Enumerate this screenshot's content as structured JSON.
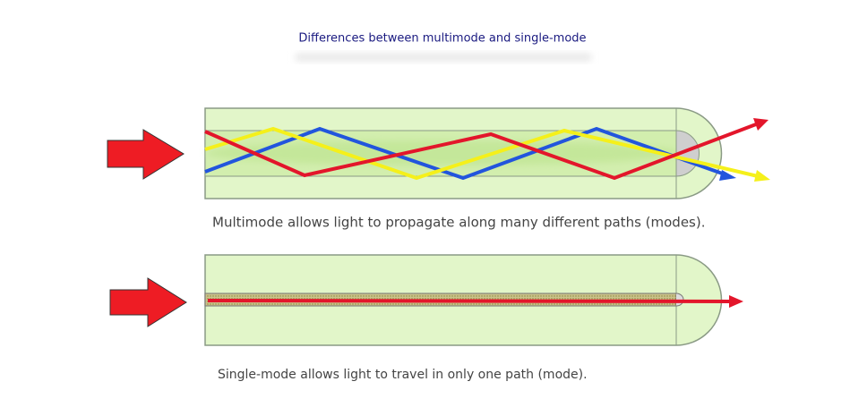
{
  "title": "Differences between multimode and single-mode",
  "diagrams": [
    {
      "caption": "Multimode allows light to propagate along many different paths (modes)."
    },
    {
      "caption": "Single-mode allows light to travel in only one path (mode)."
    }
  ]
}
